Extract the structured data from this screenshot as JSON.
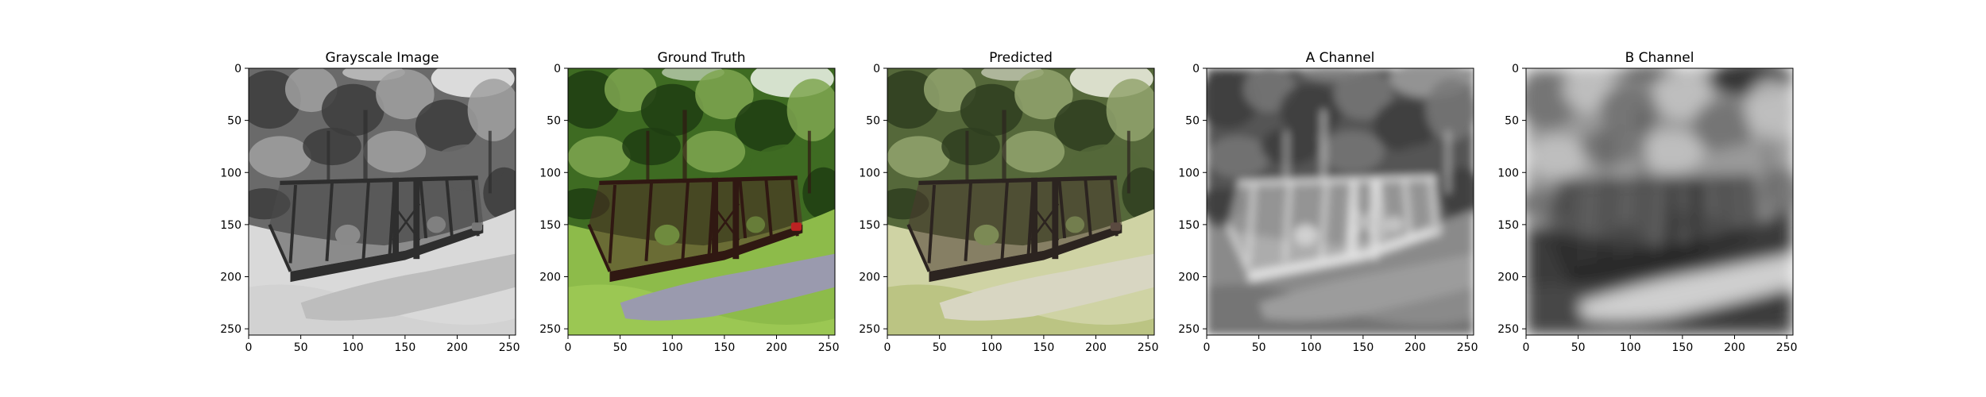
{
  "chart_data": [
    {
      "type": "heatmap",
      "title": "Grayscale Image",
      "image_kind": "grayscale",
      "xlim": [
        0,
        256
      ],
      "ylim": [
        256,
        0
      ],
      "xticks": [
        0,
        50,
        100,
        150,
        200,
        250
      ],
      "yticks": [
        0,
        50,
        100,
        150,
        200,
        250
      ],
      "grid": false
    },
    {
      "type": "heatmap",
      "title": "Ground Truth",
      "image_kind": "color",
      "xlim": [
        0,
        256
      ],
      "ylim": [
        256,
        0
      ],
      "xticks": [
        0,
        50,
        100,
        150,
        200,
        250
      ],
      "yticks": [
        0,
        50,
        100,
        150,
        200,
        250
      ],
      "grid": false
    },
    {
      "type": "heatmap",
      "title": "Predicted",
      "image_kind": "color-desaturated",
      "xlim": [
        0,
        256
      ],
      "ylim": [
        256,
        0
      ],
      "xticks": [
        0,
        50,
        100,
        150,
        200,
        250
      ],
      "yticks": [
        0,
        50,
        100,
        150,
        200,
        250
      ],
      "grid": false
    },
    {
      "type": "heatmap",
      "title": "A Channel",
      "image_kind": "channel-a",
      "xlim": [
        0,
        256
      ],
      "ylim": [
        256,
        0
      ],
      "xticks": [
        0,
        50,
        100,
        150,
        200,
        250
      ],
      "yticks": [
        0,
        50,
        100,
        150,
        200,
        250
      ],
      "grid": false
    },
    {
      "type": "heatmap",
      "title": "B Channel",
      "image_kind": "channel-b",
      "xlim": [
        0,
        256
      ],
      "ylim": [
        256,
        0
      ],
      "xticks": [
        0,
        50,
        100,
        150,
        200,
        250
      ],
      "yticks": [
        0,
        50,
        100,
        150,
        200,
        250
      ],
      "grid": false
    }
  ]
}
